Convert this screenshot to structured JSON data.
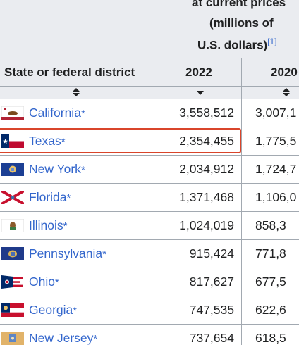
{
  "header": {
    "group_title_line1": "at current prices",
    "group_title_line2": "(millions of",
    "group_title_line3": "U.S. dollars)",
    "group_footnote": "[1]",
    "col_state": "State or federal district",
    "col_2022": "2022",
    "col_2020": "2020"
  },
  "sort_icons": {
    "state": "both-arrows-icon",
    "y2022": "down-arrow-icon",
    "y2020": "both-arrows-icon"
  },
  "highlight_color": "#d9452b",
  "link_color": "#3366cc",
  "rows": [
    {
      "state": "California",
      "star": "*",
      "gdp_2022": "3,558,512",
      "gdp_2020": "3,007,1",
      "flag": "california-flag-icon"
    },
    {
      "state": "Texas",
      "star": "*",
      "gdp_2022": "2,354,455",
      "gdp_2020": "1,775,5",
      "flag": "texas-flag-icon"
    },
    {
      "state": "New York",
      "star": "*",
      "gdp_2022": "2,034,912",
      "gdp_2020": "1,724,7",
      "flag": "new-york-flag-icon"
    },
    {
      "state": "Florida",
      "star": "*",
      "gdp_2022": "1,371,468",
      "gdp_2020": "1,106,0",
      "flag": "florida-flag-icon"
    },
    {
      "state": "Illinois",
      "star": "*",
      "gdp_2022": "1,024,019",
      "gdp_2020": "858,3",
      "flag": "illinois-flag-icon"
    },
    {
      "state": "Pennsylvania",
      "star": "*",
      "gdp_2022": "915,424",
      "gdp_2020": "771,8",
      "flag": "pennsylvania-flag-icon"
    },
    {
      "state": "Ohio",
      "star": "*",
      "gdp_2022": "817,627",
      "gdp_2020": "677,5",
      "flag": "ohio-flag-icon"
    },
    {
      "state": "Georgia",
      "star": "*",
      "gdp_2022": "747,535",
      "gdp_2020": "622,6",
      "flag": "georgia-flag-icon"
    },
    {
      "state": "New Jersey",
      "star": "*",
      "gdp_2022": "737,654",
      "gdp_2020": "618,5",
      "flag": "new-jersey-flag-icon"
    }
  ]
}
